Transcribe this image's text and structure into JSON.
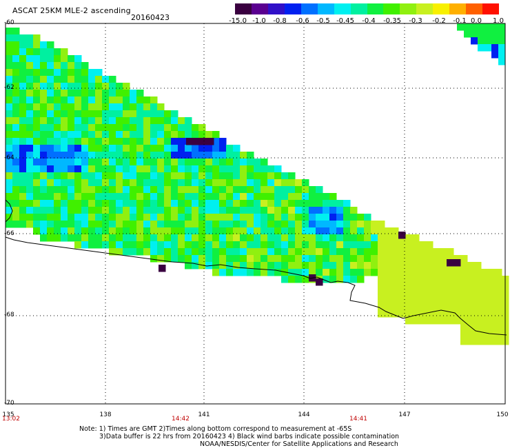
{
  "header": {
    "title": "ASCAT 25KM MLE-2 ascending",
    "date": "20160423"
  },
  "colorbar": {
    "colors": [
      "#3a0040",
      "#5a0090",
      "#3010c8",
      "#0020f0",
      "#0070ff",
      "#00b8ff",
      "#00f0f0",
      "#00f0a0",
      "#10f040",
      "#40f000",
      "#90f010",
      "#c8f020",
      "#f8f000",
      "#ffb000",
      "#ff6000",
      "#ff1000"
    ],
    "labels": [
      "-15.0",
      "-1.0",
      "-0.8",
      "-0.6",
      "-0.5",
      "-0.45",
      "-0.4",
      "-0.35",
      "-0.3",
      "-0.2",
      "-0.1",
      "0.0",
      "1.0"
    ]
  },
  "axes": {
    "latitude_labels": [
      "-60",
      "-62",
      "-64",
      "-66",
      "-68",
      "-70"
    ],
    "longitude_labels": [
      "135",
      "138",
      "141",
      "144",
      "147",
      "150"
    ]
  },
  "pass_times": [
    "13:02",
    "14:42",
    "14:41"
  ],
  "notes": {
    "line1": "Note: 1) Times are GMT 2)Times along bottom correspond to measurement at -65S",
    "line2": "3)Data buffer is 22 hrs from 20160423 4) Black wind barbs indicate possible contamination",
    "line3": "NOAA/NESDIS/Center for Satellite Applications and Research"
  }
}
